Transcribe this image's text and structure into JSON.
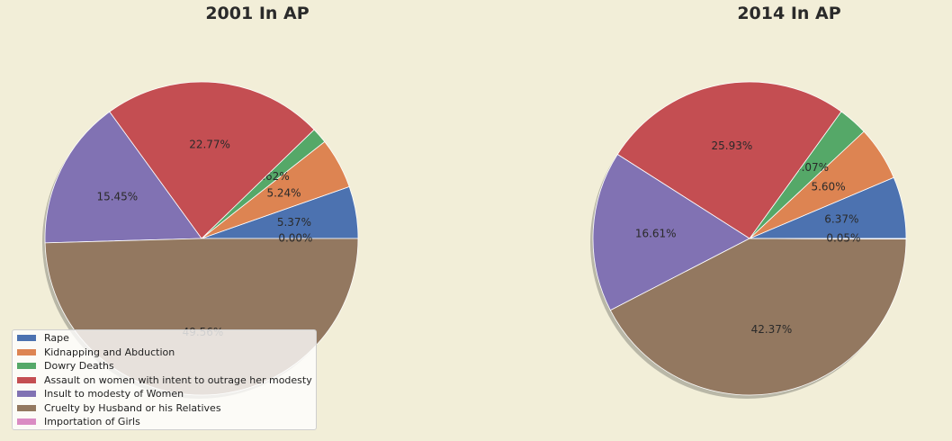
{
  "chart_data": [
    {
      "type": "pie",
      "title": "2001 In AP",
      "categories": [
        "Rape",
        "Kidnapping and Abduction",
        "Dowry Deaths",
        "Assault on women with intent to outrage her modesty",
        "Insult to modesty of Women",
        "Cruelty by Husband or his Relatives",
        "Importation of Girls"
      ],
      "values": [
        5.37,
        5.24,
        1.62,
        22.77,
        15.45,
        49.56,
        0.0
      ],
      "labels": [
        "5.37%",
        "5.24%",
        "1.62%",
        "22.77%",
        "15.45%",
        "49.56%",
        "0.00%"
      ],
      "shadow": true,
      "legend_position": "lower-left"
    },
    {
      "type": "pie",
      "title": "2014 In AP",
      "categories": [
        "Rape",
        "Kidnapping and Abduction",
        "Dowry Deaths",
        "Assault on women with intent to outrage her modesty",
        "Insult to modesty of Women",
        "Cruelty by Husband or his Relatives",
        "Importation of Girls"
      ],
      "values": [
        6.37,
        5.6,
        3.07,
        25.93,
        16.61,
        42.37,
        0.05
      ],
      "labels": [
        "6.37%",
        "5.60%",
        "3.07%",
        "25.93%",
        "16.61%",
        "42.37%",
        "0.05%"
      ],
      "shadow": true
    }
  ],
  "colors": [
    "#4c72b0",
    "#dd8452",
    "#55a868",
    "#c44e52",
    "#8172b3",
    "#937860",
    "#da8bc3"
  ],
  "legend": {
    "items": [
      "Rape",
      "Kidnapping and Abduction",
      "Dowry Deaths",
      "Assault on women with intent to outrage her modesty",
      "Insult to modesty of Women",
      "Cruelty by Husband or his Relatives",
      "Importation of Girls"
    ]
  }
}
